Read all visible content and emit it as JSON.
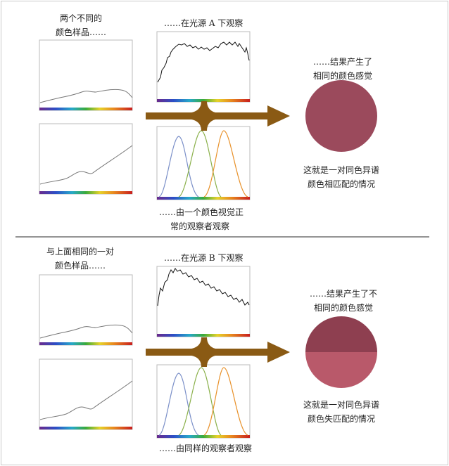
{
  "top": {
    "samples_caption": [
      "两个不同的",
      "颜色样品……"
    ],
    "light_caption": "……在光源 A 下观察",
    "observer_caption": [
      "……由一个颜色视觉正",
      "常的观察者观察"
    ],
    "result_caption": [
      "……结果产生了",
      "相同的颜色感觉"
    ],
    "conclusion": [
      "这就是一对同色异谱",
      "颜色相匹配的情况"
    ],
    "circle_color": "#9b4a5c"
  },
  "bottom": {
    "samples_caption": [
      "与上面相同的一对",
      "颜色样品……"
    ],
    "light_caption": "……在光源 B 下观察",
    "observer_caption": [
      "……由同样的观察者观察"
    ],
    "result_caption": [
      "……结果产生了不",
      "相同的颜色感觉"
    ],
    "conclusion": [
      "这就是一对同色异谱",
      "颜色失匹配的情况"
    ],
    "circle_top_color": "#8e3f50",
    "circle_bottom_color": "#b9596a"
  },
  "colors": {
    "arrow": "#8a5a14",
    "divider": "#555555",
    "frame": "#bbbbbb"
  }
}
